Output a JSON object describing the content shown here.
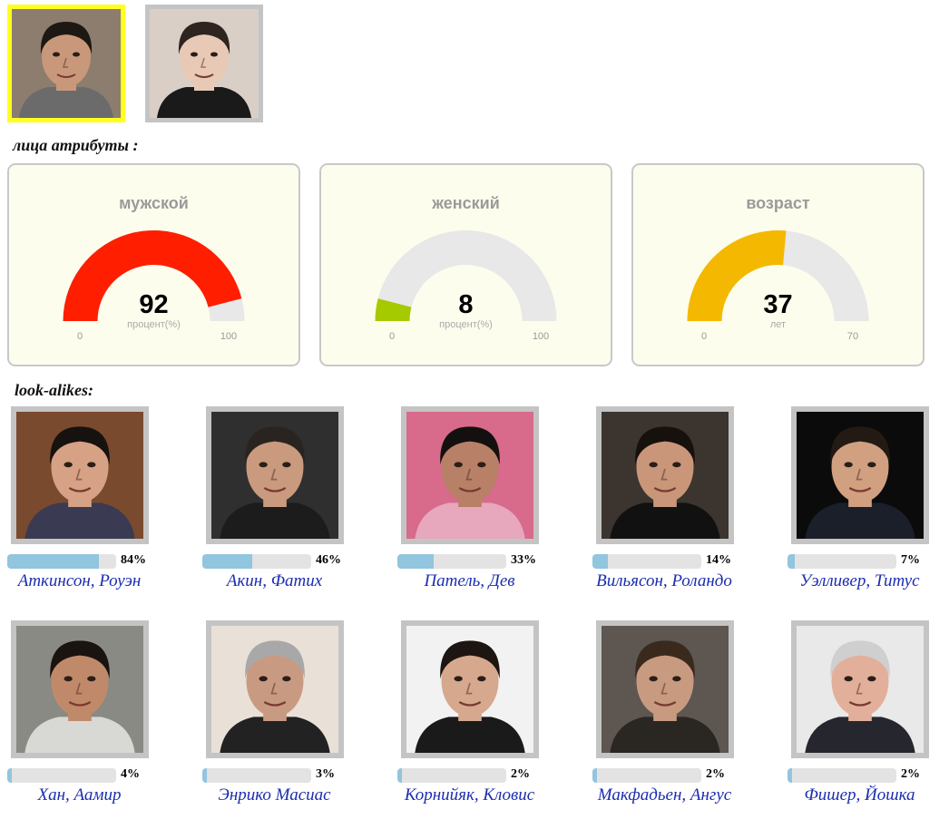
{
  "input_faces": [
    {
      "label": "face-1",
      "selected": true,
      "skin": "#c9987a",
      "hair": "#1e1814",
      "bg": "#8c7d6e",
      "shirt": "#6b6b6b"
    },
    {
      "label": "face-2",
      "selected": false,
      "skin": "#e8c9b6",
      "hair": "#2e2420",
      "bg": "#d9cfc7",
      "shirt": "#1a1a1a"
    }
  ],
  "attributes_label": "лица атрибуты :",
  "gauges": [
    {
      "title": "мужской",
      "value": "92",
      "fraction": 0.92,
      "unit": "процент(%)",
      "min": "0",
      "max": "100",
      "color": "#ff1e00"
    },
    {
      "title": "женский",
      "value": "8",
      "fraction": 0.08,
      "unit": "процент(%)",
      "min": "0",
      "max": "100",
      "color": "#a6ca00"
    },
    {
      "title": "возраст",
      "value": "37",
      "fraction": 0.5286,
      "unit": "лет",
      "min": "0",
      "max": "70",
      "color": "#f5b800"
    }
  ],
  "lookalikes_label": "look-alikes:",
  "lookalikes": [
    {
      "name": "Аткинсон, Роуэн",
      "percent": "84%",
      "fraction": 0.84,
      "skin": "#d6a184",
      "hair": "#161210",
      "bg": "#7a4a2e",
      "shirt": "#3a3a52"
    },
    {
      "name": "Акин, Фатих",
      "percent": "46%",
      "fraction": 0.46,
      "skin": "#c99a7e",
      "hair": "#2a2420",
      "bg": "#2f2f2f",
      "shirt": "#1c1c1c"
    },
    {
      "name": "Патель, Дев",
      "percent": "33%",
      "fraction": 0.33,
      "skin": "#b88066",
      "hair": "#151010",
      "bg": "#d86a8c",
      "shirt": "#e7a7bd"
    },
    {
      "name": "Вильясон, Роландо",
      "percent": "14%",
      "fraction": 0.14,
      "skin": "#c9967a",
      "hair": "#17110e",
      "bg": "#3b342f",
      "shirt": "#111111"
    },
    {
      "name": "Уэлливер, Титус",
      "percent": "7%",
      "fraction": 0.07,
      "skin": "#d0a080",
      "hair": "#241a14",
      "bg": "#0b0b0b",
      "shirt": "#1b1f2a"
    },
    {
      "name": "Хан, Аамир",
      "percent": "4%",
      "fraction": 0.04,
      "skin": "#c08a6a",
      "hair": "#1a1410",
      "bg": "#8a8a84",
      "shirt": "#d8d8d4"
    },
    {
      "name": "Энрико Масиас",
      "percent": "3%",
      "fraction": 0.03,
      "skin": "#c99a82",
      "hair": "#a8a8a8",
      "bg": "#e9e0d7",
      "shirt": "#222222"
    },
    {
      "name": "Корнийяк, Кловис",
      "percent": "2%",
      "fraction": 0.02,
      "skin": "#d6a88e",
      "hair": "#1c1512",
      "bg": "#f2f2f2",
      "shirt": "#1a1a1a"
    },
    {
      "name": "Макфадьен, Ангус",
      "percent": "2%",
      "fraction": 0.02,
      "skin": "#c89a80",
      "hair": "#3a2a1e",
      "bg": "#5d5651",
      "shirt": "#2a2622"
    },
    {
      "name": "Фишер, Йошка",
      "percent": "2%",
      "fraction": 0.02,
      "skin": "#e2b09a",
      "hair": "#cfcfcf",
      "bg": "#e9e9e9",
      "shirt": "#26262e"
    }
  ]
}
